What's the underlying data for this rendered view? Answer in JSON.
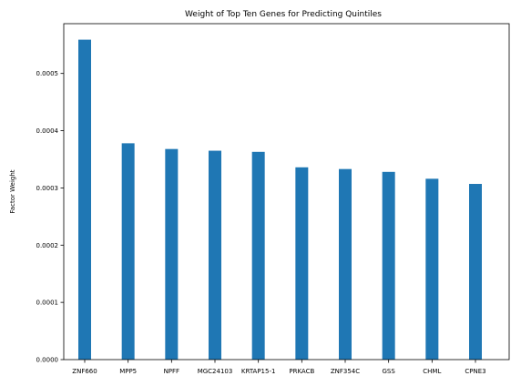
{
  "chart_data": {
    "type": "bar",
    "title": "Weight of Top Ten Genes for Predicting Quintiles",
    "xlabel": "",
    "ylabel": "Factor Weight",
    "categories": [
      "ZNF660",
      "MPP5",
      "NPFF",
      "MGC24103",
      "KRTAP15-1",
      "PRKACB",
      "ZNF354C",
      "GSS",
      "CHML",
      "CPNE3"
    ],
    "values": [
      0.000559,
      0.000378,
      0.000368,
      0.000365,
      0.000363,
      0.000336,
      0.000333,
      0.000328,
      0.000316,
      0.000307
    ],
    "ylim": [
      0,
      0.000587
    ],
    "yticks": [
      "0.0000",
      "0.0001",
      "0.0002",
      "0.0003",
      "0.0004",
      "0.0005"
    ],
    "ytick_values": [
      0,
      0.0001,
      0.0002,
      0.0003,
      0.0004,
      0.0005
    ],
    "bar_color": "#1f77b4",
    "grid": false,
    "legend": "none"
  }
}
